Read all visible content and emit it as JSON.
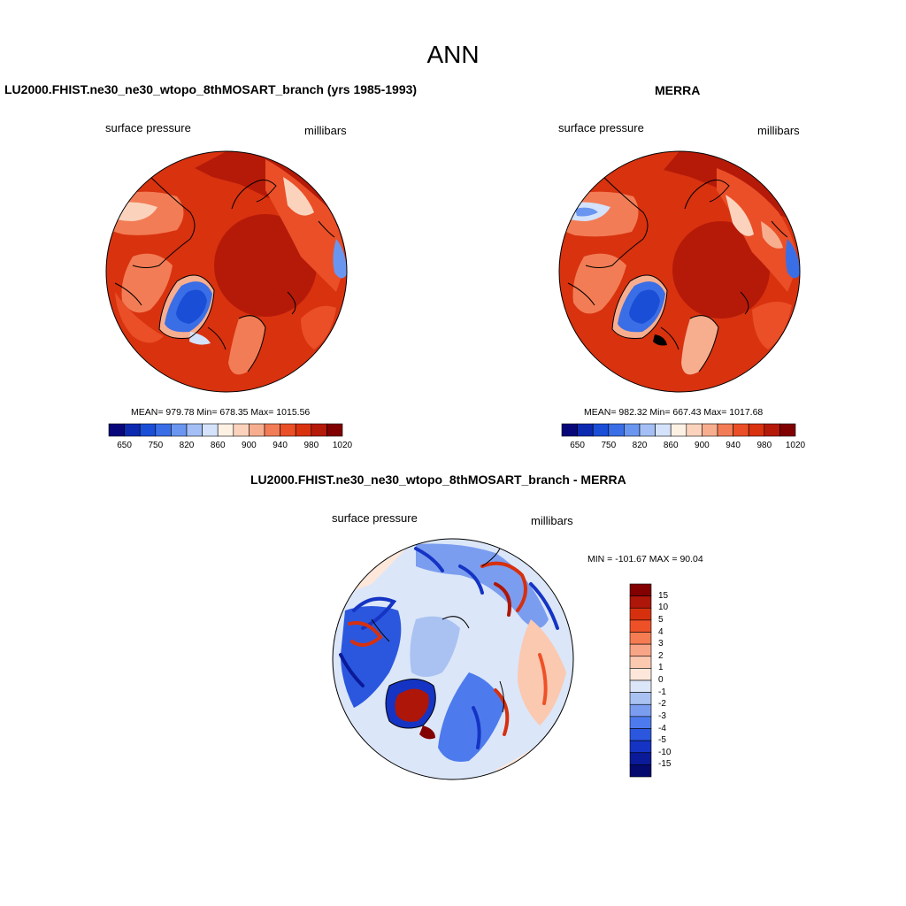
{
  "page_title": "ANN",
  "panels": [
    {
      "title": "LU2000.FHIST.ne30_ne30_wtopo_8thMOSART_branch (yrs 1985-1993)",
      "variable": "surface pressure",
      "units": "millibars",
      "stats": "MEAN= 979.78  Min= 678.35  Max= 1015.56"
    },
    {
      "title": "MERRA",
      "variable": "surface pressure",
      "units": "millibars",
      "stats": "MEAN= 982.32  Min= 667.43  Max= 1017.68"
    },
    {
      "title": "LU2000.FHIST.ne30_ne30_wtopo_8thMOSART_branch - MERRA",
      "variable": "surface pressure",
      "units": "millibars",
      "stats": "MIN = -101.67 MAX =  90.04"
    }
  ],
  "colorbar_abs": {
    "colors": [
      "#08077a",
      "#0c2ab0",
      "#1a4ed6",
      "#3a6ee6",
      "#6a96ef",
      "#a3bff5",
      "#d4e2fb",
      "#fdf1e4",
      "#fbd3bd",
      "#f7ae8f",
      "#f27c55",
      "#ea4f28",
      "#d8320f",
      "#b51a08",
      "#800000"
    ],
    "tick_labels": [
      "650",
      "750",
      "820",
      "860",
      "900",
      "940",
      "980",
      "1020"
    ]
  },
  "colorbar_diff": {
    "colors": [
      "#820000",
      "#ad1608",
      "#d6300f",
      "#ee5128",
      "#f57c52",
      "#f8a587",
      "#fbc8b0",
      "#fde7db",
      "#dbe6f8",
      "#a9c2f2",
      "#7b9df0",
      "#4d7bed",
      "#2b57df",
      "#1534c4",
      "#0a1a98",
      "#040a6e"
    ],
    "tick_labels": [
      "15",
      "10",
      "5",
      "4",
      "3",
      "2",
      "1",
      "0",
      "-1",
      "-2",
      "-3",
      "-4",
      "-5",
      "-10",
      "-15"
    ]
  },
  "chart_data": [
    {
      "type": "heatmap",
      "title": "LU2000.FHIST.ne30_ne30_wtopo_8thMOSART_branch (yrs 1985-1993)",
      "projection": "north polar stereographic",
      "variable": "surface pressure",
      "units": "millibars",
      "mean": 979.78,
      "min": 678.35,
      "max": 1015.56,
      "contour_levels": [
        650,
        700,
        750,
        800,
        820,
        840,
        860,
        880,
        900,
        920,
        940,
        960,
        980,
        1000,
        1020
      ]
    },
    {
      "type": "heatmap",
      "title": "MERRA",
      "projection": "north polar stereographic",
      "variable": "surface pressure",
      "units": "millibars",
      "mean": 982.32,
      "min": 667.43,
      "max": 1017.68,
      "contour_levels": [
        650,
        700,
        750,
        800,
        820,
        840,
        860,
        880,
        900,
        920,
        940,
        960,
        980,
        1000,
        1020
      ]
    },
    {
      "type": "heatmap",
      "title": "LU2000.FHIST.ne30_ne30_wtopo_8thMOSART_branch - MERRA",
      "projection": "north polar stereographic",
      "variable": "surface pressure",
      "units": "millibars",
      "min": -101.67,
      "max": 90.04,
      "contour_levels": [
        -15,
        -10,
        -5,
        -4,
        -3,
        -2,
        -1,
        0,
        1,
        2,
        3,
        4,
        5,
        10,
        15
      ]
    }
  ]
}
